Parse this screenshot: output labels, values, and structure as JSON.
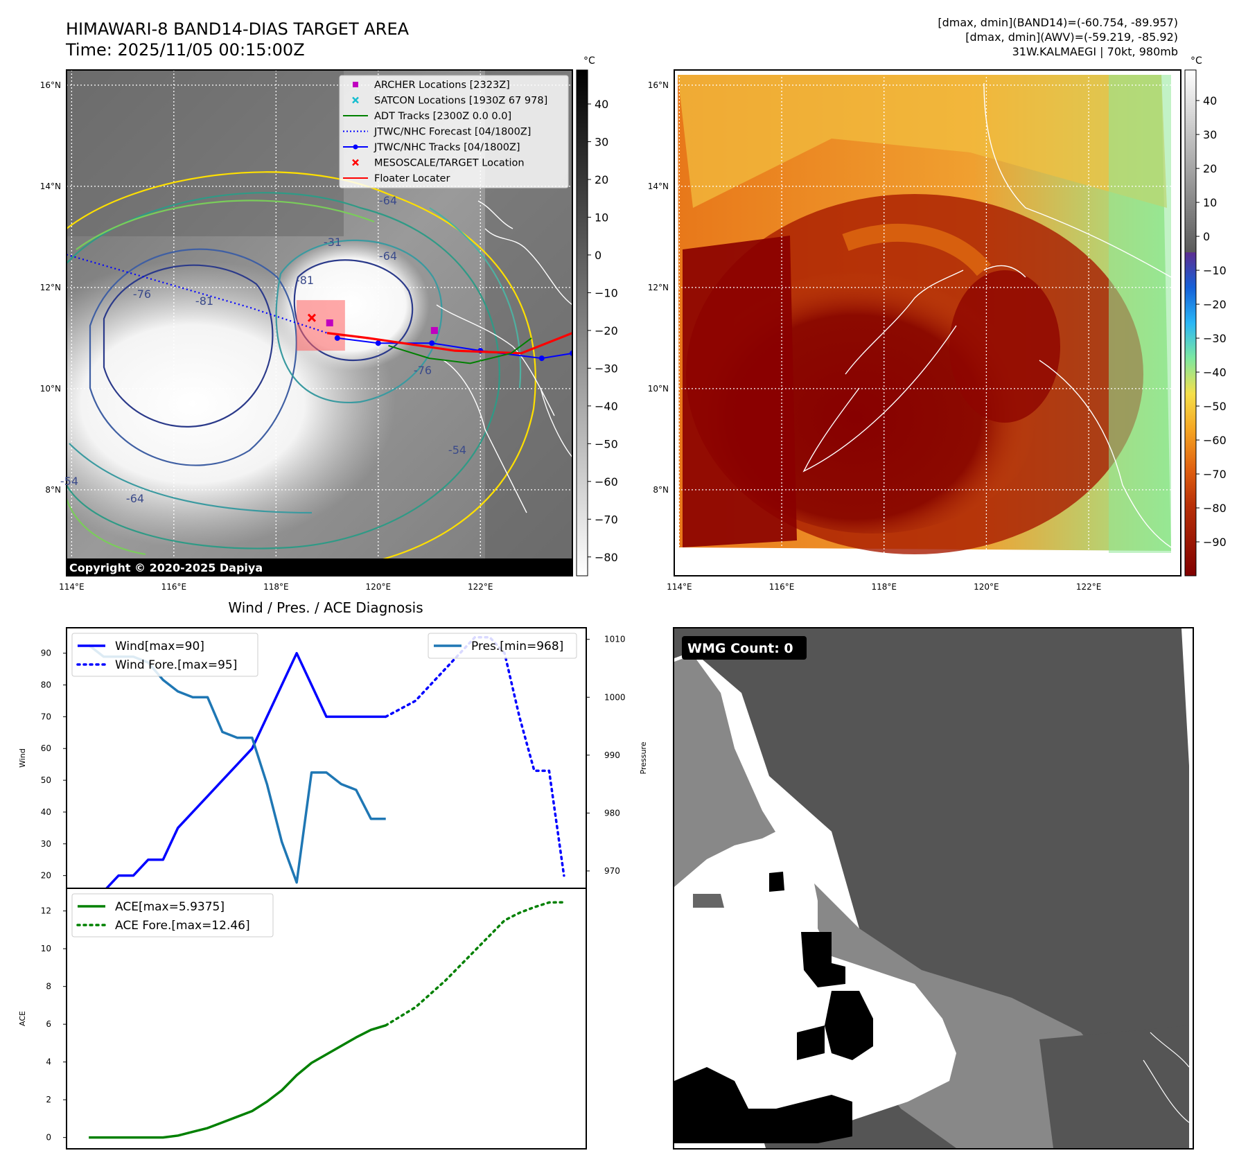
{
  "header": {
    "title_line1": "HIMAWARI-8 BAND14-DIAS TARGET AREA",
    "title_line2": "Time: 2025/11/05 00:15:00Z",
    "info_line1": "[dmax, dmin](BAND14)=(-60.754, -89.957)",
    "info_line2": "[dmax, dmin](AWV)=(-59.219, -85.92)",
    "info_line3": "31W.KALMAEGI | 70kt, 980mb"
  },
  "map_axes": {
    "lon_labels": [
      "114°E",
      "116°E",
      "118°E",
      "120°E",
      "122°E"
    ],
    "lat_labels": [
      "16°N",
      "14°N",
      "12°N",
      "10°N",
      "8°N"
    ],
    "lon_values": [
      114,
      116,
      118,
      120,
      122
    ],
    "lat_values": [
      16,
      14,
      12,
      10,
      8
    ],
    "lon_range": [
      113.9,
      123.8
    ],
    "lat_range": [
      6.3,
      16.3
    ]
  },
  "copyright": "Copyright © 2020-2025 Dapiya",
  "legend_map": {
    "items": [
      {
        "label": "ARCHER Locations [2323Z]",
        "marker": "square",
        "color": "#c000c0"
      },
      {
        "label": "SATCON Locations [1930Z 67 978]",
        "marker": "x",
        "color": "#17becf"
      },
      {
        "label": "ADT Tracks [2300Z 0.0 0.0]",
        "marker": "line",
        "color": "#008000"
      },
      {
        "label": "JTWC/NHC Forecast [04/1800Z]",
        "marker": "dotted",
        "color": "#0000ff"
      },
      {
        "label": "JTWC/NHC Tracks [04/1800Z]",
        "marker": "line-dot",
        "color": "#0000ff"
      },
      {
        "label": "MESOSCALE/TARGET Location",
        "marker": "x",
        "color": "#ff0000"
      },
      {
        "label": "Floater Locater",
        "marker": "line",
        "color": "#ff0000"
      }
    ]
  },
  "colorbar_ir": {
    "unit": "°C",
    "ticks": [
      "40",
      "30",
      "20",
      "10",
      "0",
      "−10",
      "−20",
      "−30",
      "−40",
      "−50",
      "−60",
      "−70",
      "−80"
    ],
    "tick_values": [
      40,
      30,
      20,
      10,
      0,
      -10,
      -20,
      -30,
      -40,
      -50,
      -60,
      -70,
      -80
    ],
    "range": [
      -85,
      49
    ]
  },
  "colorbar_awv": {
    "unit": "°C",
    "ticks": [
      "40",
      "30",
      "20",
      "10",
      "0",
      "−10",
      "−20",
      "−30",
      "−40",
      "−50",
      "−60",
      "−70",
      "−80",
      "−90"
    ],
    "tick_values": [
      40,
      30,
      20,
      10,
      0,
      -10,
      -20,
      -30,
      -40,
      -50,
      -60,
      -70,
      -80,
      -90
    ],
    "range": [
      -100,
      49
    ]
  },
  "contour_labels": [
    "-76",
    "-81",
    "-81",
    "-64",
    "-54",
    "-64",
    "-54",
    "-31",
    "-64",
    "-76"
  ],
  "tracks_map": {
    "jtwc_forecast": [
      [
        113.9,
        12.65
      ],
      [
        117.5,
        11.6
      ],
      [
        119.0,
        11.1
      ],
      [
        120.5,
        10.9
      ]
    ],
    "jtwc_tracks": [
      [
        123.8,
        10.7
      ],
      [
        123.2,
        10.6
      ],
      [
        122.0,
        10.75
      ],
      [
        121.05,
        10.9
      ],
      [
        120.0,
        10.9
      ],
      [
        119.2,
        11.0
      ]
    ],
    "archer": [
      [
        119.05,
        11.3
      ],
      [
        121.1,
        11.15
      ]
    ],
    "target": [
      [
        118.7,
        11.4
      ]
    ],
    "floater_box": [
      118.4,
      119.35,
      10.75,
      11.75
    ]
  },
  "diagnosis": {
    "title": "Wind / Pres. / ACE Diagnosis",
    "ylabel_wind": "Wind",
    "ylabel_pres": "Pressure",
    "ylabel_ace": "ACE",
    "legend": {
      "wind": "Wind[max=90]",
      "wind_fore": "Wind Fore.[max=95]",
      "pres": "Pres.[min=968]",
      "ace": "ACE[max=5.9375]",
      "ace_fore": "ACE Fore.[max=12.46]"
    },
    "wind_ticks": [
      "20",
      "30",
      "40",
      "50",
      "60",
      "70",
      "80",
      "90"
    ],
    "wind_tick_values": [
      20,
      30,
      40,
      50,
      60,
      70,
      80,
      90
    ],
    "pres_ticks": [
      "970",
      "980",
      "990",
      "1000",
      "1010"
    ],
    "pres_tick_values": [
      970,
      980,
      990,
      1000,
      1010
    ],
    "ace_ticks": [
      "0",
      "2",
      "4",
      "6",
      "8",
      "10",
      "12"
    ],
    "ace_tick_values": [
      0,
      2,
      4,
      6,
      8,
      10,
      12
    ]
  },
  "chart_data": {
    "type": "line",
    "x_range": [
      -1.5,
      33.5
    ],
    "wind_ylim": [
      16,
      98
    ],
    "pres_ylim": [
      967,
      1012
    ],
    "ace_ylim": [
      -0.6,
      13.2
    ],
    "series": [
      {
        "name": "Wind[max=90]",
        "axis": "wind",
        "style": "solid",
        "color": "#0000ff",
        "x": [
          0,
          1,
          2,
          3,
          4,
          5,
          6,
          7,
          8,
          9,
          10,
          11,
          12,
          13,
          14,
          15,
          16,
          17,
          18,
          19,
          20
        ],
        "values": [
          15,
          15,
          20,
          20,
          25,
          25,
          35,
          40,
          45,
          50,
          55,
          60,
          70,
          80,
          90,
          80,
          70,
          70,
          70,
          70,
          70
        ]
      },
      {
        "name": "Wind Fore.[max=95]",
        "axis": "wind",
        "style": "dotted",
        "color": "#0000ff",
        "x": [
          20,
          22,
          24,
          26,
          27,
          28,
          29,
          30,
          31,
          32
        ],
        "values": [
          70,
          75,
          85,
          95,
          95,
          90,
          70,
          53,
          53,
          20
        ]
      },
      {
        "name": "Pres.[min=968]",
        "axis": "pres",
        "style": "solid",
        "color": "#1f77b4",
        "x": [
          0,
          1,
          2,
          3,
          4,
          5,
          6,
          7,
          8,
          9,
          10,
          11,
          12,
          13,
          14,
          15,
          16,
          17,
          18,
          19,
          20
        ],
        "values": [
          1009,
          1007,
          1007,
          1007,
          1006,
          1003,
          1001,
          1000,
          1000,
          994,
          993,
          993,
          985,
          975,
          968,
          987,
          987,
          985,
          984,
          979,
          979
        ]
      },
      {
        "name": "ACE[max=5.9375]",
        "axis": "ace",
        "style": "solid",
        "color": "#008000",
        "x": [
          0,
          1,
          2,
          3,
          4,
          5,
          6,
          7,
          8,
          9,
          10,
          11,
          12,
          13,
          14,
          15,
          16,
          17,
          18,
          19,
          20
        ],
        "values": [
          0,
          0,
          0,
          0,
          0,
          0,
          0.1,
          0.3,
          0.5,
          0.8,
          1.1,
          1.4,
          1.9,
          2.5,
          3.3,
          3.95,
          4.4,
          4.85,
          5.3,
          5.7,
          5.94
        ]
      },
      {
        "name": "ACE Fore.[max=12.46]",
        "axis": "ace",
        "style": "dotted",
        "color": "#008000",
        "x": [
          20,
          22,
          24,
          26,
          28,
          29,
          30,
          31,
          32
        ],
        "values": [
          5.94,
          6.9,
          8.3,
          9.9,
          11.5,
          11.9,
          12.2,
          12.45,
          12.46
        ]
      }
    ]
  },
  "wmg": {
    "label": "WMG Count: 0"
  }
}
